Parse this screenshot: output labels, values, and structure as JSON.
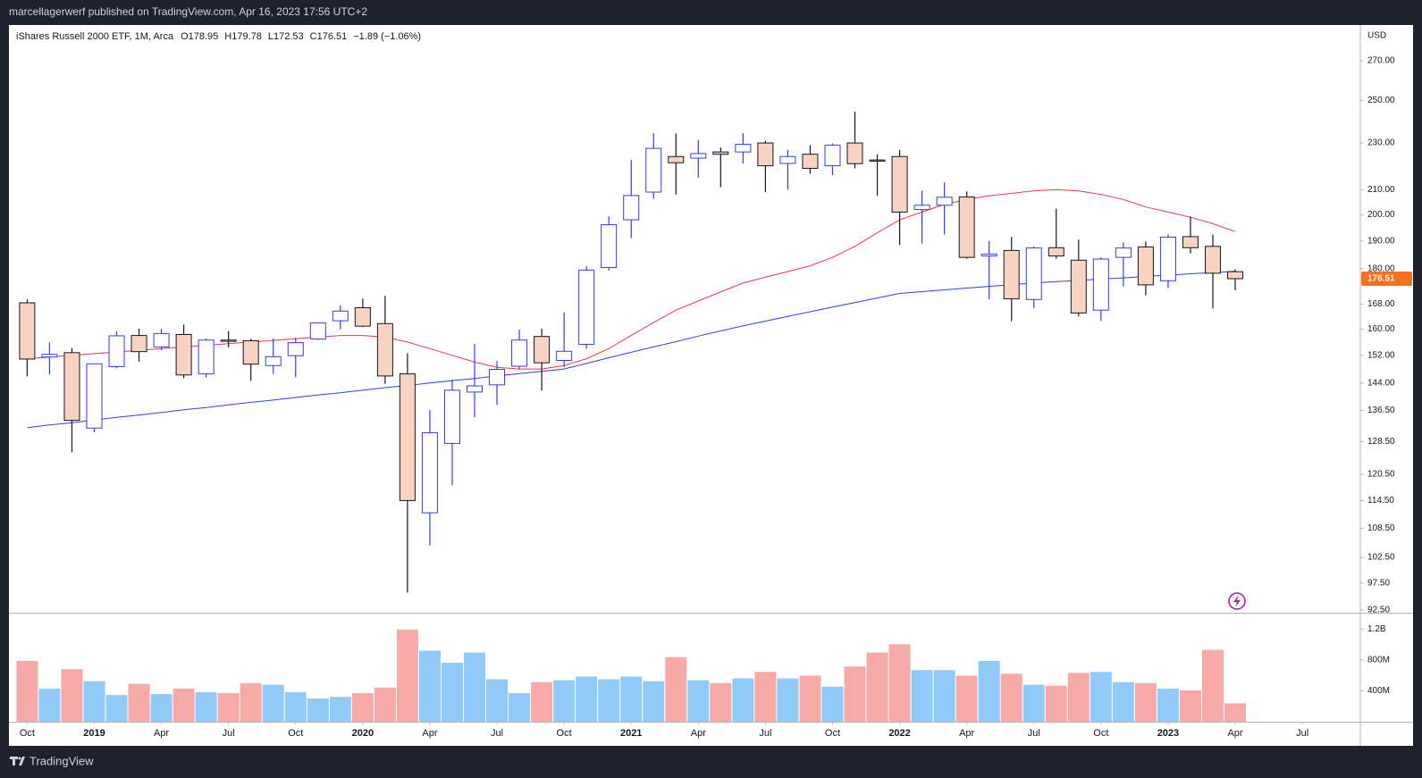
{
  "header": {
    "publisher": "marcellagerwerf published on TradingView.com, Apr 16, 2023 17:56 UTC+2"
  },
  "footer": {
    "brand": "TradingView"
  },
  "chart_data": {
    "type": "candlestick",
    "legend": {
      "name": "iShares Russell 2000 ETF, 1M, Arca",
      "open": "O178.95",
      "high": "H179.78",
      "low": "L172.53",
      "close": "C176.51",
      "change": "−1.89 (−1.06%)"
    },
    "currency": "USD",
    "log_scale": true,
    "grid": false,
    "up_color": "#ffffff",
    "up_border": "#2e3cff",
    "down_color": "#f9d3c1",
    "down_border": "#131722",
    "last_price_color": "#f7701e",
    "x": [
      "2018-10",
      "2018-11",
      "2018-12",
      "2019-01",
      "2019-02",
      "2019-03",
      "2019-04",
      "2019-05",
      "2019-06",
      "2019-07",
      "2019-08",
      "2019-09",
      "2019-10",
      "2019-11",
      "2019-12",
      "2020-01",
      "2020-02",
      "2020-03",
      "2020-04",
      "2020-05",
      "2020-06",
      "2020-07",
      "2020-08",
      "2020-09",
      "2020-10",
      "2020-11",
      "2020-12",
      "2021-01",
      "2021-02",
      "2021-03",
      "2021-04",
      "2021-05",
      "2021-06",
      "2021-07",
      "2021-08",
      "2021-09",
      "2021-10",
      "2021-11",
      "2021-12",
      "2022-01",
      "2022-02",
      "2022-03",
      "2022-04",
      "2022-05",
      "2022-06",
      "2022-07",
      "2022-08",
      "2022-09",
      "2022-10",
      "2022-11",
      "2022-12",
      "2023-01",
      "2023-02",
      "2023-03",
      "2023-04"
    ],
    "open": [
      168.4,
      151.5,
      152.8,
      131.9,
      148.7,
      158.0,
      154.5,
      158.3,
      146.6,
      156.6,
      156.4,
      149.0,
      151.9,
      156.9,
      162.6,
      166.8,
      161.7,
      146.6,
      111.8,
      128.0,
      141.5,
      143.5,
      148.8,
      157.7,
      150.5,
      155.3,
      180.4,
      198.0,
      209.0,
      224.0,
      223.3,
      226.0,
      226.0,
      230.0,
      221.0,
      225.0,
      220.0,
      230.0,
      222.5,
      224.0,
      202.0,
      203.7,
      207.0,
      184.5,
      186.5,
      169.5,
      187.5,
      183.0,
      166.0,
      184.0,
      187.8,
      175.8,
      191.6,
      188.0,
      178.95
    ],
    "high": [
      169.5,
      155.9,
      154.2,
      149.5,
      159.3,
      160.1,
      160.0,
      161.4,
      157.1,
      159.4,
      157.0,
      157.1,
      157.4,
      162.1,
      167.5,
      169.8,
      170.7,
      152.6,
      136.6,
      145.0,
      155.4,
      150.3,
      159.8,
      160.1,
      165.3,
      180.8,
      199.3,
      222.5,
      234.5,
      234.3,
      231.3,
      228.0,
      234.5,
      231.0,
      227.0,
      229.0,
      229.8,
      244.5,
      225.0,
      226.8,
      209.6,
      213.0,
      209.3,
      190.0,
      191.5,
      188.0,
      202.3,
      190.5,
      184.0,
      189.5,
      189.8,
      192.4,
      199.3,
      192.3,
      179.78
    ],
    "low": [
      145.9,
      146.4,
      125.8,
      130.8,
      148.2,
      150.1,
      153.5,
      145.4,
      145.6,
      154.4,
      144.6,
      146.6,
      145.6,
      156.6,
      159.9,
      160.6,
      143.8,
      95.7,
      104.9,
      118.0,
      134.7,
      138.0,
      148.0,
      141.9,
      148.6,
      154.0,
      179.3,
      191.0,
      206.3,
      208.0,
      215.0,
      211.0,
      221.0,
      209.0,
      210.0,
      216.6,
      216.0,
      218.9,
      207.5,
      188.5,
      189.0,
      192.4,
      183.5,
      169.6,
      162.5,
      166.7,
      183.5,
      164.0,
      162.5,
      173.8,
      170.9,
      173.3,
      185.5,
      166.6,
      172.53
    ],
    "close": [
      150.9,
      152.3,
      133.9,
      149.5,
      157.9,
      153.1,
      158.6,
      146.3,
      156.6,
      156.2,
      149.4,
      151.6,
      155.8,
      161.9,
      165.7,
      160.9,
      146.0,
      114.5,
      130.7,
      142.0,
      143.2,
      147.9,
      156.6,
      149.8,
      153.2,
      179.5,
      196.1,
      207.6,
      227.6,
      221.3,
      225.3,
      225.0,
      229.4,
      220.0,
      224.0,
      218.9,
      229.0,
      220.9,
      222.0,
      201.0,
      203.7,
      206.9,
      184.0,
      185.2,
      169.7,
      187.4,
      184.5,
      165.1,
      183.4,
      187.4,
      174.4,
      191.4,
      187.5,
      178.4,
      176.51
    ],
    "series": [
      {
        "color": "#f23645",
        "values": [
          151,
          151.5,
          152,
          152.5,
          153,
          153.5,
          154,
          154.5,
          155,
          155.5,
          156,
          156.5,
          157,
          157.5,
          158,
          158,
          157.5,
          156,
          154,
          152,
          150,
          148.5,
          148,
          148,
          149,
          151,
          154,
          158,
          162,
          166,
          169,
          172,
          175,
          177,
          179,
          181,
          184,
          188,
          193,
          198,
          201,
          204,
          206,
          207.5,
          208.5,
          209.5,
          210,
          209.5,
          208,
          206,
          203,
          201,
          199,
          196.5,
          193.5
        ]
      },
      {
        "color": "#2e3cff",
        "values": [
          132,
          132.7,
          133.3,
          134,
          134.7,
          135.3,
          136,
          136.7,
          137.3,
          138,
          138.7,
          139.3,
          140,
          140.7,
          141.3,
          142,
          142.7,
          143.3,
          144,
          144.7,
          145.3,
          146,
          146.7,
          147.3,
          148,
          149.6,
          151.3,
          152.9,
          154.5,
          156.1,
          157.8,
          159.4,
          161,
          162.5,
          164,
          165.5,
          167,
          168.5,
          170,
          171.5,
          172.1,
          172.7,
          173.3,
          173.9,
          174.5,
          175,
          175.5,
          175.9,
          176.4,
          176.8,
          177.3,
          177.7,
          178.2,
          178.6,
          179.1
        ]
      }
    ],
    "ylim": [
      92,
      289
    ],
    "yticks": [
      {
        "value": 270,
        "label": "270.00"
      },
      {
        "value": 250,
        "label": "250.00"
      },
      {
        "value": 230,
        "label": "230.00"
      },
      {
        "value": 210,
        "label": "210.00"
      },
      {
        "value": 200,
        "label": "200.00"
      },
      {
        "value": 190,
        "label": "190.00"
      },
      {
        "value": 180,
        "label": "180.00"
      },
      {
        "value": 168,
        "label": "168.00"
      },
      {
        "value": 160,
        "label": "160.00"
      },
      {
        "value": 152,
        "label": "152.00"
      },
      {
        "value": 144,
        "label": "144.00"
      },
      {
        "value": 136.5,
        "label": "136.50"
      },
      {
        "value": 128.5,
        "label": "128.50"
      },
      {
        "value": 120.5,
        "label": "120.50"
      },
      {
        "value": 114.5,
        "label": "114.50"
      },
      {
        "value": 108.5,
        "label": "108.50"
      },
      {
        "value": 102.5,
        "label": "102.50"
      },
      {
        "value": 97.5,
        "label": "97.50"
      },
      {
        "value": 92.5,
        "label": "92.50"
      }
    ],
    "volume": {
      "up_color": "#90caf9",
      "down_color": "#f7a9a7",
      "values": [
        788000000,
        430000000,
        680000000,
        525000000,
        346000000,
        490000000,
        358000000,
        430000000,
        382000000,
        370000000,
        500000000,
        478000000,
        382000000,
        300000000,
        322000000,
        370000000,
        442000000,
        1194000000,
        920000000,
        764000000,
        896000000,
        550000000,
        370000000,
        513000000,
        537000000,
        585000000,
        550000000,
        585000000,
        525000000,
        836000000,
        537000000,
        500000000,
        561000000,
        645000000,
        561000000,
        597000000,
        454000000,
        716000000,
        896000000,
        1003000000,
        668000000,
        668000000,
        597000000,
        788000000,
        621000000,
        478000000,
        466000000,
        633000000,
        645000000,
        513000000,
        500000000,
        430000000,
        406000000,
        931000000,
        239000000
      ],
      "ylim": [
        0,
        1400000000
      ],
      "yticks": [
        {
          "value": 1200000000,
          "label": "1.2B"
        },
        {
          "value": 800000000,
          "label": "800M"
        },
        {
          "value": 400000000,
          "label": "400M"
        }
      ]
    },
    "xticks": [
      {
        "value": "2018-10",
        "label": "Oct"
      },
      {
        "value": "2019-01",
        "label": "2019"
      },
      {
        "value": "2019-04",
        "label": "Apr"
      },
      {
        "value": "2019-07",
        "label": "Jul"
      },
      {
        "value": "2019-10",
        "label": "Oct"
      },
      {
        "value": "2020-01",
        "label": "2020"
      },
      {
        "value": "2020-04",
        "label": "Apr"
      },
      {
        "value": "2020-07",
        "label": "Jul"
      },
      {
        "value": "2020-10",
        "label": "Oct"
      },
      {
        "value": "2021-01",
        "label": "2021"
      },
      {
        "value": "2021-04",
        "label": "Apr"
      },
      {
        "value": "2021-07",
        "label": "Jul"
      },
      {
        "value": "2021-10",
        "label": "Oct"
      },
      {
        "value": "2022-01",
        "label": "2022"
      },
      {
        "value": "2022-04",
        "label": "Apr"
      },
      {
        "value": "2022-07",
        "label": "Jul"
      },
      {
        "value": "2022-10",
        "label": "Oct"
      },
      {
        "value": "2023-01",
        "label": "2023"
      },
      {
        "value": "2023-04",
        "label": "Apr"
      },
      {
        "value": "2023-07",
        "label": "Jul"
      }
    ]
  }
}
